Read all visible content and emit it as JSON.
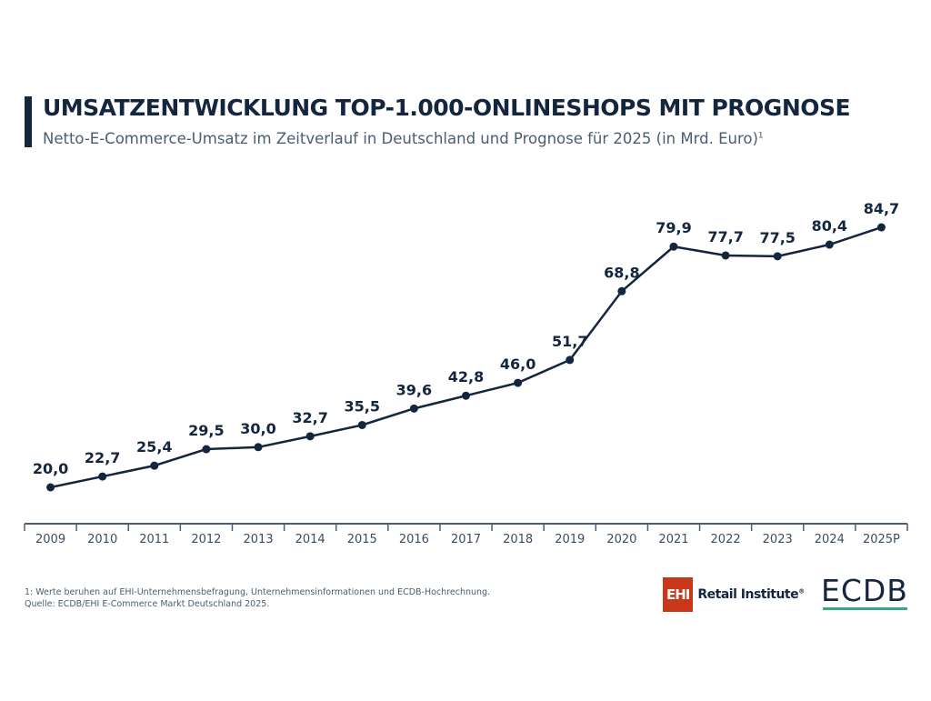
{
  "header": {
    "title": "UMSATZENTWICKLUNG TOP-1.000-ONLINESHOPS MIT PROGNOSE",
    "subtitle": "Netto-E-Commerce-Umsatz im Zeitverlauf in Deutschland und Prognose für 2025 (in Mrd. Euro)",
    "subtitle_sup": "1"
  },
  "chart_data": {
    "type": "line",
    "title": "UMSATZENTWICKLUNG TOP-1.000-ONLINESHOPS MIT PROGNOSE",
    "categories": [
      "2009",
      "2010",
      "2011",
      "2012",
      "2013",
      "2014",
      "2015",
      "2016",
      "2017",
      "2018",
      "2019",
      "2020",
      "2021",
      "2022",
      "2023",
      "2024",
      "2025P"
    ],
    "values": [
      20.0,
      22.7,
      25.4,
      29.5,
      30.0,
      32.7,
      35.5,
      39.6,
      42.8,
      46.0,
      51.7,
      68.8,
      79.9,
      77.7,
      77.5,
      80.4,
      84.7
    ],
    "labels": [
      "20,0",
      "22,7",
      "25,4",
      "29,5",
      "30,0",
      "32,7",
      "35,5",
      "39,6",
      "42,8",
      "46,0",
      "51,7",
      "68,8",
      "79,9",
      "77,7",
      "77,5",
      "80,4",
      "84,7"
    ],
    "color": "#13263d",
    "grid": false
  },
  "footer": {
    "note": "1: Werte beruhen auf EHI-Unternehmensbefragung, Unternehmensinformationen und ECDB-Hochrechnung.",
    "source": "Quelle: ECDB/EHI E-Commerce Markt Deutschland 2025."
  },
  "logos": {
    "ehi_box": "EHI",
    "ehi_text": "Retail Institute",
    "ehi_reg": "®",
    "ecdb": "ECDB",
    "ehi_color": "#c8371a",
    "ecdb_accent": "#3aa58a"
  }
}
